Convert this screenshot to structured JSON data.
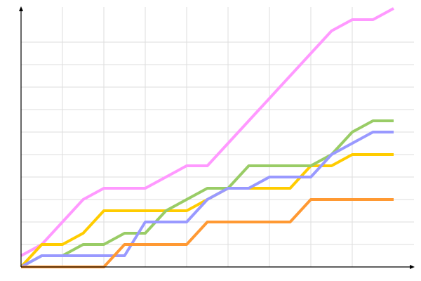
{
  "chart_data": {
    "type": "line",
    "title": "",
    "xlabel": "",
    "ylabel": "",
    "x": [
      0,
      1,
      2,
      3,
      4,
      5,
      6,
      7,
      8,
      9,
      10,
      11,
      12,
      13,
      14,
      15,
      16,
      17,
      18
    ],
    "xlim": [
      0,
      19
    ],
    "ylim": [
      0,
      23.3
    ],
    "x_grid_step": 2,
    "y_grid_step": 2,
    "grid": true,
    "legend": "none",
    "axis_color": "#000000",
    "grid_color": "#dddddd",
    "series": [
      {
        "color": "#ff99ff",
        "values": [
          1,
          2,
          4,
          6,
          7,
          7,
          7,
          8,
          9,
          9,
          11,
          13,
          15,
          17,
          19,
          21,
          22,
          22,
          23
        ]
      },
      {
        "color": "#ffcc00",
        "values": [
          0,
          2,
          2,
          3,
          5,
          5,
          5,
          5,
          5,
          6,
          7,
          7,
          7,
          7,
          9,
          9,
          10,
          10,
          10
        ]
      },
      {
        "color": "#99cc66",
        "values": [
          0,
          1,
          1,
          2,
          2,
          3,
          3,
          5,
          6,
          7,
          7,
          9,
          9,
          9,
          9,
          10,
          12,
          13,
          13
        ]
      },
      {
        "color": "#9999ff",
        "values": [
          0,
          1,
          1,
          1,
          1,
          1,
          4,
          4,
          4,
          6,
          7,
          7,
          8,
          8,
          8,
          10,
          11,
          12,
          12
        ]
      },
      {
        "color": "#ff9933",
        "values": [
          0,
          0,
          0,
          0,
          0,
          2,
          2,
          2,
          2,
          4,
          4,
          4,
          4,
          4,
          6,
          6,
          6,
          6,
          6
        ]
      }
    ]
  }
}
